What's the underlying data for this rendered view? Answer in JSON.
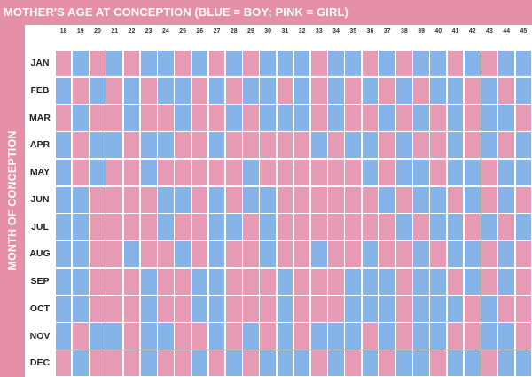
{
  "title": "MOTHER'S AGE AT CONCEPTION (BLUE = BOY; PINK = GIRL)",
  "y_axis_label": "MONTH OF CONCEPTION",
  "colors": {
    "frame": "#e68fa9",
    "boy": "#87b4e8",
    "girl": "#e79ab3",
    "grid": "#ffffff"
  },
  "chart_data": {
    "type": "heatmap",
    "title": "MOTHER'S AGE AT CONCEPTION (BLUE = BOY; PINK = GIRL)",
    "ylabel": "MONTH OF CONCEPTION",
    "xlabel": "",
    "x_categories": [
      "18",
      "19",
      "20",
      "21",
      "22",
      "23",
      "24",
      "25",
      "26",
      "27",
      "28",
      "29",
      "30",
      "31",
      "32",
      "33",
      "34",
      "35",
      "36",
      "37",
      "38",
      "39",
      "40",
      "41",
      "42",
      "43",
      "44",
      "45"
    ],
    "y_categories": [
      "JAN",
      "FEB",
      "MAR",
      "APR",
      "MAY",
      "JUN",
      "JUL",
      "AUG",
      "SEP",
      "OCT",
      "NOV",
      "DEC"
    ],
    "legend": {
      "B": "BOY",
      "G": "GIRL"
    },
    "values": [
      [
        "G",
        "B",
        "G",
        "B",
        "G",
        "B",
        "B",
        "G",
        "B",
        "G",
        "B",
        "G",
        "B",
        "B",
        "B",
        "G",
        "B",
        "B",
        "G",
        "B",
        "G",
        "B",
        "B",
        "G",
        "B",
        "G",
        "B",
        "B"
      ],
      [
        "B",
        "G",
        "B",
        "G",
        "B",
        "G",
        "B",
        "B",
        "G",
        "B",
        "G",
        "B",
        "B",
        "G",
        "B",
        "G",
        "B",
        "G",
        "B",
        "G",
        "B",
        "G",
        "B",
        "B",
        "G",
        "B",
        "G",
        "B"
      ],
      [
        "G",
        "B",
        "G",
        "G",
        "B",
        "G",
        "G",
        "B",
        "G",
        "G",
        "B",
        "G",
        "B",
        "B",
        "B",
        "G",
        "B",
        "G",
        "G",
        "B",
        "G",
        "B",
        "G",
        "B",
        "G",
        "B",
        "B",
        "G"
      ],
      [
        "B",
        "G",
        "B",
        "B",
        "G",
        "B",
        "B",
        "G",
        "G",
        "B",
        "G",
        "G",
        "G",
        "G",
        "G",
        "B",
        "G",
        "B",
        "B",
        "G",
        "B",
        "G",
        "G",
        "B",
        "G",
        "B",
        "G",
        "B"
      ],
      [
        "B",
        "G",
        "B",
        "G",
        "G",
        "B",
        "G",
        "G",
        "G",
        "G",
        "G",
        "B",
        "G",
        "G",
        "G",
        "G",
        "G",
        "G",
        "B",
        "G",
        "B",
        "B",
        "G",
        "B",
        "B",
        "G",
        "B",
        "B"
      ],
      [
        "B",
        "B",
        "G",
        "G",
        "G",
        "G",
        "B",
        "B",
        "G",
        "B",
        "G",
        "B",
        "B",
        "G",
        "G",
        "G",
        "G",
        "G",
        "G",
        "B",
        "G",
        "B",
        "B",
        "G",
        "B",
        "G",
        "B",
        "G"
      ],
      [
        "B",
        "B",
        "G",
        "G",
        "G",
        "G",
        "B",
        "G",
        "G",
        "B",
        "B",
        "G",
        "B",
        "G",
        "G",
        "G",
        "G",
        "G",
        "G",
        "G",
        "B",
        "G",
        "B",
        "B",
        "G",
        "B",
        "G",
        "B"
      ],
      [
        "B",
        "B",
        "G",
        "G",
        "B",
        "G",
        "G",
        "B",
        "G",
        "B",
        "G",
        "G",
        "B",
        "G",
        "G",
        "B",
        "G",
        "G",
        "B",
        "G",
        "G",
        "B",
        "G",
        "B",
        "B",
        "G",
        "B",
        "G"
      ],
      [
        "B",
        "B",
        "G",
        "G",
        "G",
        "B",
        "G",
        "G",
        "B",
        "B",
        "G",
        "G",
        "G",
        "B",
        "G",
        "G",
        "G",
        "B",
        "B",
        "B",
        "G",
        "B",
        "B",
        "G",
        "B",
        "G",
        "B",
        "G"
      ],
      [
        "B",
        "B",
        "G",
        "G",
        "G",
        "B",
        "G",
        "G",
        "B",
        "B",
        "G",
        "G",
        "G",
        "B",
        "G",
        "G",
        "G",
        "B",
        "B",
        "B",
        "G",
        "B",
        "B",
        "B",
        "G",
        "B",
        "G",
        "G"
      ],
      [
        "B",
        "G",
        "B",
        "B",
        "G",
        "B",
        "B",
        "G",
        "G",
        "B",
        "G",
        "B",
        "G",
        "B",
        "G",
        "B",
        "B",
        "B",
        "G",
        "B",
        "G",
        "B",
        "B",
        "G",
        "G",
        "B",
        "B",
        "G"
      ],
      [
        "G",
        "B",
        "G",
        "G",
        "G",
        "B",
        "G",
        "G",
        "B",
        "G",
        "B",
        "G",
        "B",
        "B",
        "B",
        "G",
        "B",
        "G",
        "B",
        "G",
        "B",
        "B",
        "G",
        "B",
        "B",
        "G",
        "B",
        "B"
      ]
    ]
  }
}
